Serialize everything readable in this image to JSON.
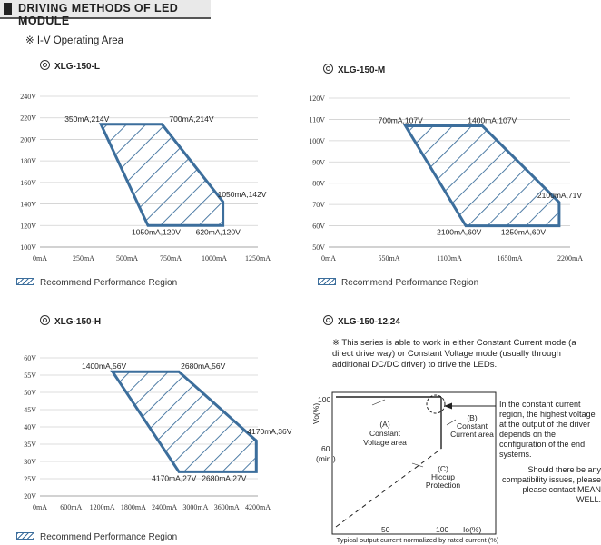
{
  "header": {
    "title": "DRIVING METHODS OF LED MODULE"
  },
  "subtitle": "※ I-V Operating Area",
  "legend_label": "Recommend Performance Region",
  "colors": {
    "region": "#3c6e9c"
  },
  "chart_data": [
    {
      "type": "area",
      "title": "XLG-150-L",
      "x_ticks": [
        "0mA",
        "250mA",
        "500mA",
        "750mA",
        "1000mA",
        "1250mA"
      ],
      "y_ticks": [
        "100V",
        "120V",
        "140V",
        "160V",
        "180V",
        "200V",
        "220V",
        "240V"
      ],
      "xlim": [
        0,
        1250
      ],
      "ylim": [
        100,
        240
      ],
      "region": [
        [
          350,
          214
        ],
        [
          700,
          214
        ],
        [
          1050,
          142
        ],
        [
          1050,
          120
        ],
        [
          620,
          120
        ]
      ],
      "annotations": [
        "350mA,214V",
        "700mA,214V",
        "1050mA,142V",
        "620mA,120V",
        "1050mA,120V"
      ]
    },
    {
      "type": "area",
      "title": "XLG-150-M",
      "x_ticks": [
        "0mA",
        "550mA",
        "1100mA",
        "1650mA",
        "2200mA"
      ],
      "y_ticks": [
        "50V",
        "60V",
        "70V",
        "80V",
        "90V",
        "100V",
        "110V",
        "120V"
      ],
      "xlim": [
        0,
        2200
      ],
      "ylim": [
        50,
        120
      ],
      "region": [
        [
          700,
          107
        ],
        [
          1400,
          107
        ],
        [
          2100,
          71
        ],
        [
          2100,
          60
        ],
        [
          1250,
          60
        ]
      ],
      "annotations": [
        "700mA,107V",
        "1400mA,107V",
        "2100mA,71V",
        "1250mA,60V",
        "2100mA,60V"
      ]
    },
    {
      "type": "area",
      "title": "XLG-150-H",
      "x_ticks": [
        "0mA",
        "600mA",
        "1200mA",
        "1800mA",
        "2400mA",
        "3000mA",
        "3600mA",
        "4200mA"
      ],
      "y_ticks": [
        "20V",
        "25V",
        "30V",
        "35V",
        "40V",
        "45V",
        "50V",
        "55V",
        "60V"
      ],
      "xlim": [
        0,
        4200
      ],
      "ylim": [
        20,
        60
      ],
      "region": [
        [
          1400,
          56
        ],
        [
          2680,
          56
        ],
        [
          4170,
          36
        ],
        [
          4170,
          27
        ],
        [
          2680,
          27
        ]
      ],
      "annotations": [
        "1400mA,56V",
        "2680mA,56V",
        "4170mA,36V",
        "2680mA,27V",
        "4170mA,27V"
      ]
    }
  ],
  "diagram": {
    "title": "XLG-150-12,24",
    "description": "※ This series is able to work in either Constant Current mode (a direct drive way) or   Constant Voltage mode (usually through additional DC/DC driver) to drive the LEDs.",
    "y_axis_label": "Vo(%)",
    "x_axis_label": "Io(%)",
    "y_ticks": [
      "100",
      "60",
      "(min.)"
    ],
    "x_ticks": [
      "50",
      "100"
    ],
    "region_a": [
      "(A)",
      "Constant",
      "Voltage area"
    ],
    "region_b": [
      "(B)",
      "Constant",
      "Current area"
    ],
    "region_c": [
      "(C)",
      "Hiccup",
      "Protection"
    ],
    "footer": "Typical output current normalized by rated current (%)",
    "note_main": "In the constant current region, the highest voltage at the output of the driver depends on the configuration of the end systems.",
    "note_secondary": "Should there be any compatibility issues, please please contact MEAN WELL."
  }
}
